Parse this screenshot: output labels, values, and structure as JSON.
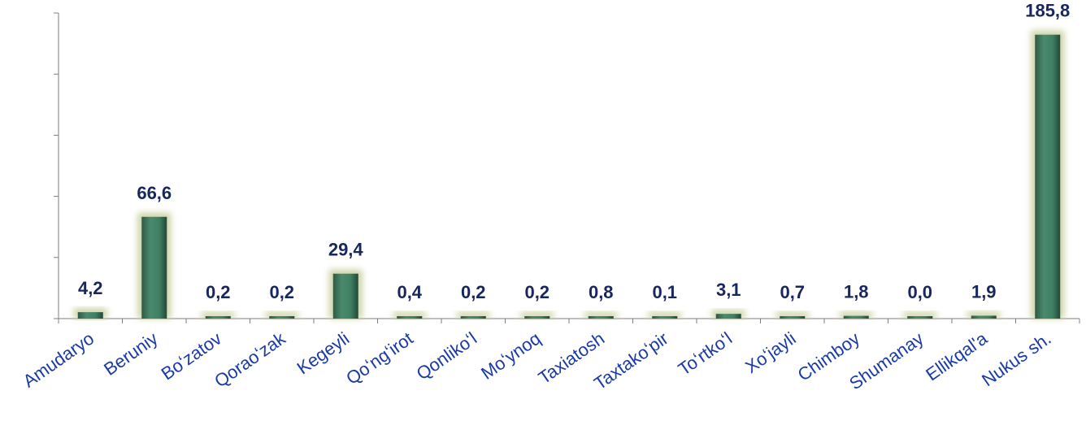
{
  "chart_data": {
    "type": "bar",
    "categories": [
      "Amudaryo",
      "Beruniy",
      "Boʻzatov",
      "Qoraoʻzak",
      "Kegeyli",
      "Qoʻngʻirot",
      "Qonlikoʻl",
      "Moʻynoq",
      "Taxiatosh",
      "Taxtakoʻpir",
      "Toʻrtkoʻl",
      "Xoʻjayli",
      "Chimboy",
      "Shumanay",
      "Ellikqal'a",
      "Nukus sh."
    ],
    "values": [
      4.2,
      66.6,
      0.2,
      0.2,
      29.4,
      0.4,
      0.2,
      0.2,
      0.8,
      0.1,
      3.1,
      0.7,
      1.8,
      0.0,
      1.9,
      185.8
    ],
    "value_labels": [
      "4,2",
      "66,6",
      "0,2",
      "0,2",
      "29,4",
      "0,4",
      "0,2",
      "0,2",
      "0,8",
      "0,1",
      "3,1",
      "0,7",
      "1,8",
      "0,0",
      "1,9",
      "185,8"
    ],
    "title": "",
    "xlabel": "",
    "ylabel": "",
    "ylim": [
      0,
      200
    ],
    "grid": false,
    "legend": "none",
    "colors": {
      "bar": "#3f7f62",
      "bar_dark": "#23483a",
      "glow": "#c5cc98",
      "value_text": "#17265e",
      "category_text": "#1a3aa8",
      "axis": "#7f7f7f"
    }
  }
}
